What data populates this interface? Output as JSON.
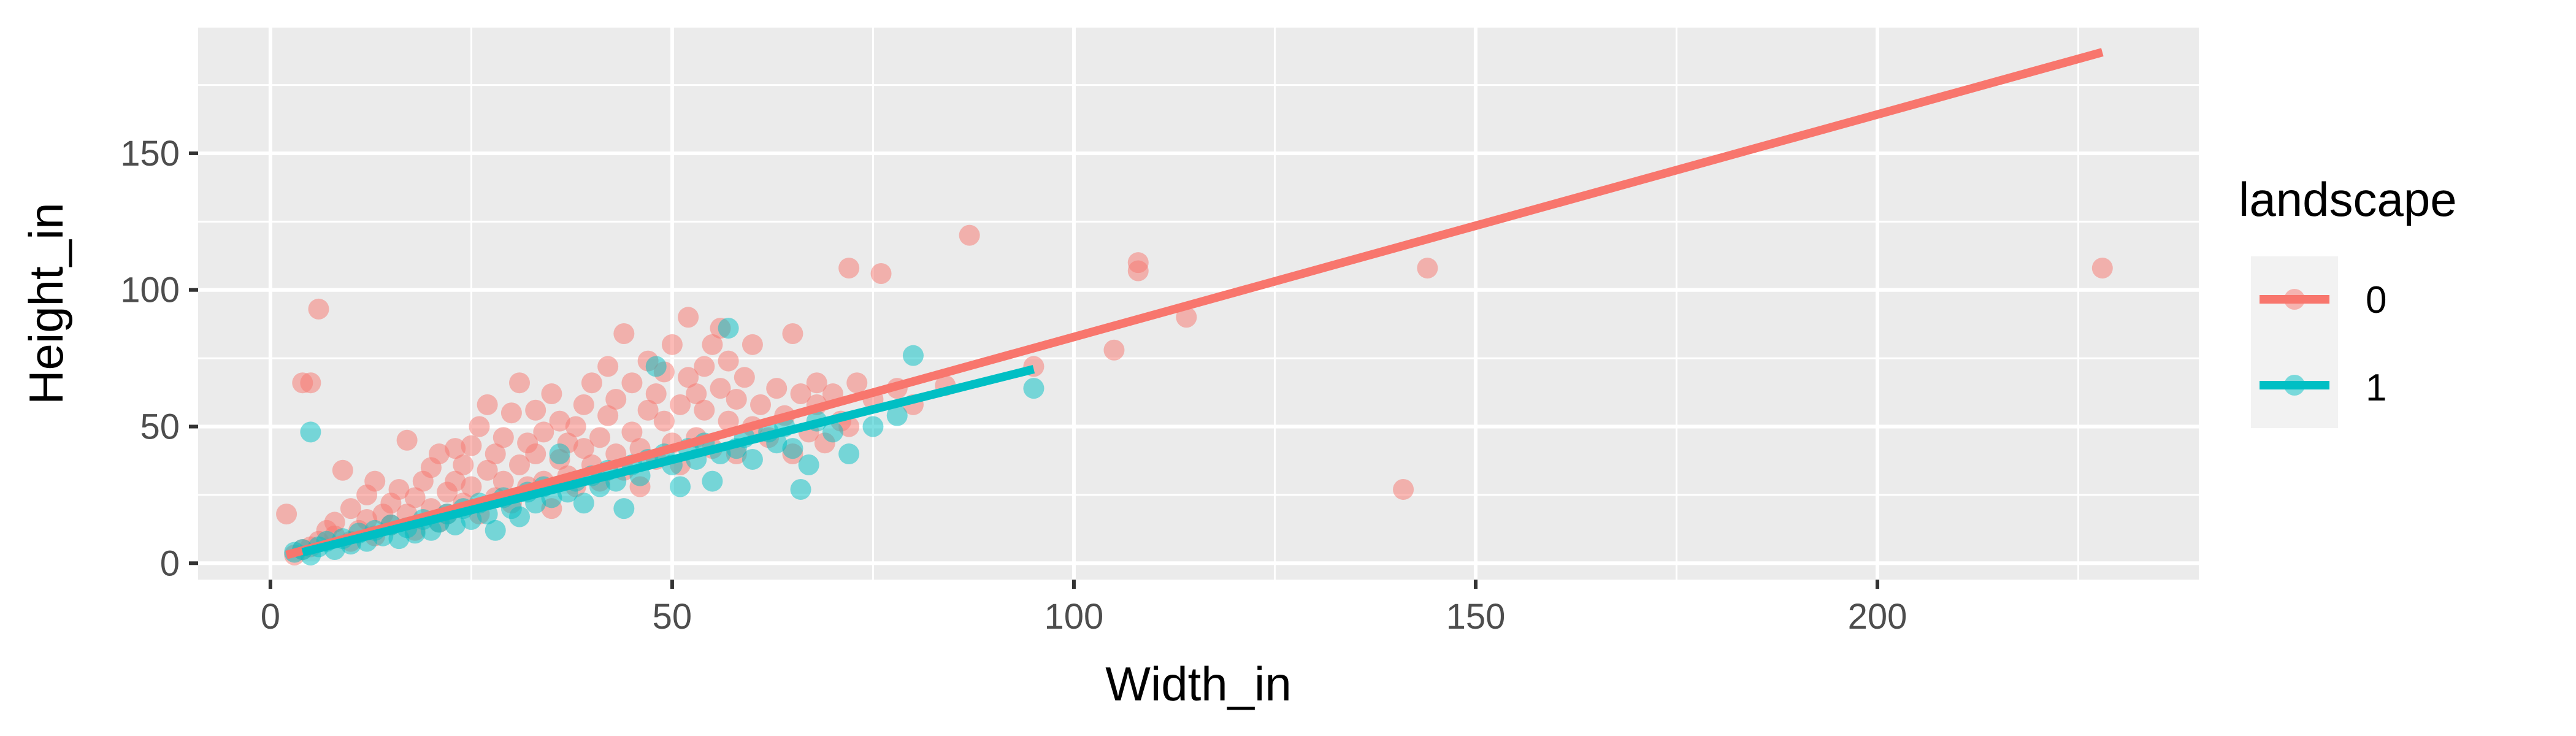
{
  "chart_data": {
    "type": "scatter",
    "xlabel": "Width_in",
    "ylabel": "Height_in",
    "xlim": [
      -9,
      240
    ],
    "ylim": [
      -6,
      196
    ],
    "x_ticks": [
      0,
      50,
      100,
      150,
      200
    ],
    "y_ticks": [
      0,
      50,
      100,
      150
    ],
    "grid": true,
    "legend": {
      "title": "landscape",
      "position": "right"
    },
    "series": [
      {
        "name": "0",
        "color": "#F8766D",
        "fit_line": {
          "x": [
            2,
            228
          ],
          "y": [
            3,
            187
          ]
        },
        "points": [
          [
            2,
            18
          ],
          [
            3,
            3
          ],
          [
            4,
            5
          ],
          [
            4,
            66
          ],
          [
            5,
            66
          ],
          [
            5,
            6
          ],
          [
            6,
            93
          ],
          [
            6,
            8
          ],
          [
            7,
            12
          ],
          [
            8,
            10
          ],
          [
            8,
            15
          ],
          [
            9,
            34
          ],
          [
            10,
            8
          ],
          [
            10,
            20
          ],
          [
            11,
            12
          ],
          [
            12,
            25
          ],
          [
            12,
            16
          ],
          [
            13,
            10
          ],
          [
            13,
            30
          ],
          [
            14,
            18
          ],
          [
            15,
            22
          ],
          [
            15,
            14
          ],
          [
            16,
            27
          ],
          [
            17,
            45
          ],
          [
            17,
            18
          ],
          [
            18,
            24
          ],
          [
            18,
            12
          ],
          [
            19,
            30
          ],
          [
            20,
            20
          ],
          [
            20,
            35
          ],
          [
            21,
            15
          ],
          [
            21,
            40
          ],
          [
            22,
            26
          ],
          [
            22,
            18
          ],
          [
            23,
            42
          ],
          [
            23,
            30
          ],
          [
            24,
            22
          ],
          [
            24,
            36
          ],
          [
            25,
            28
          ],
          [
            25,
            43
          ],
          [
            26,
            18
          ],
          [
            26,
            50
          ],
          [
            27,
            34
          ],
          [
            27,
            58
          ],
          [
            28,
            24
          ],
          [
            28,
            40
          ],
          [
            29,
            30
          ],
          [
            29,
            46
          ],
          [
            30,
            22
          ],
          [
            30,
            55
          ],
          [
            31,
            36
          ],
          [
            31,
            66
          ],
          [
            32,
            28
          ],
          [
            32,
            44
          ],
          [
            33,
            40
          ],
          [
            33,
            56
          ],
          [
            34,
            30
          ],
          [
            34,
            48
          ],
          [
            35,
            20
          ],
          [
            35,
            62
          ],
          [
            36,
            38
          ],
          [
            36,
            52
          ],
          [
            37,
            44
          ],
          [
            37,
            32
          ],
          [
            38,
            50
          ],
          [
            38,
            28
          ],
          [
            39,
            58
          ],
          [
            39,
            42
          ],
          [
            40,
            36
          ],
          [
            40,
            66
          ],
          [
            41,
            46
          ],
          [
            41,
            30
          ],
          [
            42,
            54
          ],
          [
            42,
            72
          ],
          [
            43,
            40
          ],
          [
            43,
            60
          ],
          [
            44,
            34
          ],
          [
            44,
            84
          ],
          [
            45,
            48
          ],
          [
            45,
            66
          ],
          [
            46,
            42
          ],
          [
            46,
            28
          ],
          [
            47,
            56
          ],
          [
            47,
            74
          ],
          [
            48,
            38
          ],
          [
            48,
            62
          ],
          [
            49,
            52
          ],
          [
            49,
            70
          ],
          [
            50,
            44
          ],
          [
            50,
            80
          ],
          [
            51,
            58
          ],
          [
            51,
            36
          ],
          [
            52,
            68
          ],
          [
            52,
            90
          ],
          [
            53,
            46
          ],
          [
            53,
            62
          ],
          [
            54,
            72
          ],
          [
            54,
            56
          ],
          [
            55,
            80
          ],
          [
            55,
            42
          ],
          [
            56,
            64
          ],
          [
            56,
            86
          ],
          [
            57,
            52
          ],
          [
            57,
            74
          ],
          [
            58,
            60
          ],
          [
            58,
            40
          ],
          [
            59,
            68
          ],
          [
            60,
            50
          ],
          [
            60,
            80
          ],
          [
            61,
            58
          ],
          [
            62,
            46
          ],
          [
            63,
            64
          ],
          [
            64,
            54
          ],
          [
            65,
            84
          ],
          [
            65,
            40
          ],
          [
            66,
            62
          ],
          [
            67,
            48
          ],
          [
            68,
            66
          ],
          [
            68,
            58
          ],
          [
            69,
            44
          ],
          [
            70,
            62
          ],
          [
            71,
            52
          ],
          [
            72,
            108
          ],
          [
            72,
            50
          ],
          [
            73,
            66
          ],
          [
            75,
            60
          ],
          [
            76,
            106
          ],
          [
            78,
            64
          ],
          [
            80,
            58
          ],
          [
            84,
            65
          ],
          [
            87,
            120
          ],
          [
            95,
            72
          ],
          [
            105,
            78
          ],
          [
            108,
            107
          ],
          [
            108,
            110
          ],
          [
            114,
            90
          ],
          [
            141,
            27
          ],
          [
            144,
            108
          ],
          [
            228,
            108
          ]
        ]
      },
      {
        "name": "1",
        "color": "#00BFC4",
        "fit_line": {
          "x": [
            4,
            95
          ],
          "y": [
            4,
            71
          ]
        },
        "points": [
          [
            3,
            4
          ],
          [
            4,
            5
          ],
          [
            5,
            3
          ],
          [
            5,
            48
          ],
          [
            6,
            6
          ],
          [
            7,
            8
          ],
          [
            8,
            5
          ],
          [
            9,
            9
          ],
          [
            10,
            7
          ],
          [
            11,
            11
          ],
          [
            12,
            8
          ],
          [
            13,
            12
          ],
          [
            14,
            10
          ],
          [
            15,
            14
          ],
          [
            16,
            9
          ],
          [
            17,
            13
          ],
          [
            18,
            11
          ],
          [
            19,
            16
          ],
          [
            20,
            12
          ],
          [
            21,
            15
          ],
          [
            22,
            18
          ],
          [
            23,
            14
          ],
          [
            24,
            20
          ],
          [
            25,
            16
          ],
          [
            26,
            22
          ],
          [
            27,
            18
          ],
          [
            28,
            12
          ],
          [
            29,
            24
          ],
          [
            30,
            20
          ],
          [
            31,
            17
          ],
          [
            32,
            26
          ],
          [
            33,
            22
          ],
          [
            34,
            28
          ],
          [
            35,
            24
          ],
          [
            36,
            40
          ],
          [
            37,
            26
          ],
          [
            38,
            30
          ],
          [
            39,
            22
          ],
          [
            40,
            32
          ],
          [
            41,
            28
          ],
          [
            42,
            34
          ],
          [
            43,
            30
          ],
          [
            44,
            20
          ],
          [
            45,
            36
          ],
          [
            46,
            32
          ],
          [
            47,
            38
          ],
          [
            48,
            72
          ],
          [
            49,
            40
          ],
          [
            50,
            36
          ],
          [
            51,
            28
          ],
          [
            52,
            42
          ],
          [
            53,
            38
          ],
          [
            54,
            44
          ],
          [
            55,
            30
          ],
          [
            56,
            40
          ],
          [
            57,
            86
          ],
          [
            58,
            42
          ],
          [
            59,
            46
          ],
          [
            60,
            38
          ],
          [
            62,
            48
          ],
          [
            63,
            44
          ],
          [
            64,
            50
          ],
          [
            65,
            42
          ],
          [
            66,
            27
          ],
          [
            67,
            36
          ],
          [
            68,
            52
          ],
          [
            70,
            48
          ],
          [
            72,
            40
          ],
          [
            75,
            50
          ],
          [
            78,
            54
          ],
          [
            80,
            76
          ],
          [
            95,
            64
          ]
        ]
      }
    ]
  }
}
